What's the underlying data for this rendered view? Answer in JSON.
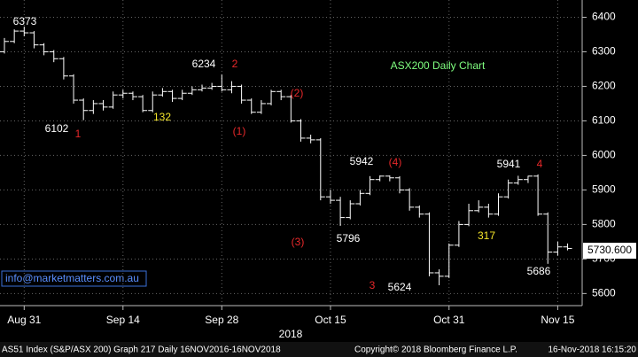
{
  "chart_data": {
    "type": "ohlc",
    "title": "ASX200 Daily Chart",
    "title_color": "#80ff80",
    "color": "#ffffff",
    "categories": [
      null,
      null,
      "Aug 31",
      null,
      null,
      null,
      null,
      null,
      null,
      null,
      null,
      null,
      "Sep 14",
      null,
      null,
      null,
      null,
      null,
      null,
      null,
      null,
      null,
      "Sep 28",
      null,
      null,
      null,
      null,
      null,
      null,
      null,
      null,
      null,
      null,
      "Oct 15",
      null,
      null,
      null,
      null,
      null,
      null,
      null,
      null,
      null,
      null,
      null,
      "Oct 31",
      null,
      null,
      null,
      null,
      null,
      null,
      null,
      null,
      null,
      null,
      "Nov 15",
      null
    ],
    "open": [
      6300,
      6330,
      6360,
      6355,
      6320,
      6300,
      6280,
      6230,
      6160,
      6130,
      6150,
      6140,
      6175,
      6180,
      6170,
      6130,
      6175,
      6185,
      6165,
      6180,
      6190,
      6195,
      6200,
      6190,
      6200,
      6160,
      6125,
      6150,
      6185,
      6170,
      6100,
      6050,
      6045,
      5880,
      5870,
      5820,
      5860,
      5890,
      5930,
      5940,
      5935,
      5900,
      5850,
      5830,
      5660,
      5650,
      5740,
      5800,
      5840,
      5850,
      5830,
      5880,
      5920,
      5930,
      5940,
      5830,
      5720,
      5735
    ],
    "high": [
      6340,
      6365,
      6373,
      6360,
      6325,
      6305,
      6285,
      6235,
      6165,
      6160,
      6160,
      6185,
      6190,
      6185,
      6175,
      6185,
      6195,
      6190,
      6190,
      6200,
      6205,
      6210,
      6234,
      6215,
      6205,
      6165,
      6160,
      6190,
      6190,
      6175,
      6105,
      6060,
      6050,
      5900,
      5880,
      5870,
      5900,
      5940,
      5942,
      5942,
      5940,
      5905,
      5855,
      5835,
      5670,
      5745,
      5810,
      5860,
      5870,
      5860,
      5890,
      5930,
      5941,
      5941,
      5945,
      5835,
      5750,
      5745
    ],
    "low": [
      6295,
      6325,
      6345,
      6310,
      6290,
      6270,
      6220,
      6150,
      6102,
      6120,
      6130,
      6135,
      6165,
      6160,
      6125,
      6125,
      6170,
      6155,
      6160,
      6175,
      6185,
      6190,
      6185,
      6180,
      6150,
      6120,
      6120,
      6145,
      6160,
      6095,
      6040,
      6035,
      5870,
      5860,
      5796,
      5815,
      5855,
      5885,
      5925,
      5925,
      5890,
      5840,
      5820,
      5650,
      5624,
      5645,
      5735,
      5795,
      5835,
      5820,
      5825,
      5875,
      5915,
      5920,
      5825,
      5686,
      5710,
      5725
    ],
    "close": [
      6330,
      6360,
      6355,
      6320,
      6300,
      6280,
      6230,
      6160,
      6130,
      6150,
      6140,
      6175,
      6180,
      6170,
      6130,
      6175,
      6185,
      6165,
      6180,
      6190,
      6195,
      6200,
      6190,
      6200,
      6160,
      6125,
      6150,
      6185,
      6170,
      6100,
      6050,
      6045,
      5880,
      5870,
      5820,
      5860,
      5890,
      5930,
      5940,
      5935,
      5900,
      5850,
      5830,
      5660,
      5650,
      5740,
      5800,
      5840,
      5850,
      5830,
      5880,
      5920,
      5930,
      5940,
      5830,
      5720,
      5735,
      5730.6
    ],
    "ylim": [
      5565,
      6450
    ],
    "yticks": [
      5600,
      5700,
      5800,
      5900,
      6000,
      6100,
      6200,
      6300,
      6400
    ],
    "grid": true,
    "last_price_label": "5730.600",
    "x_year": "2018",
    "annotations": [
      {
        "text": "6373",
        "color": "#ffffff"
      },
      {
        "text": "6102",
        "color": "#ffffff"
      },
      {
        "text": "1",
        "color": "#e8282a"
      },
      {
        "text": "132",
        "color": "#f5e62a"
      },
      {
        "text": "6234",
        "color": "#ffffff"
      },
      {
        "text": "2",
        "color": "#e8282a"
      },
      {
        "text": "(1)",
        "color": "#e8282a"
      },
      {
        "text": "(2)",
        "color": "#e8282a"
      },
      {
        "text": "5796",
        "color": "#ffffff"
      },
      {
        "text": "(3)",
        "color": "#e8282a"
      },
      {
        "text": "5942",
        "color": "#ffffff"
      },
      {
        "text": "(4)",
        "color": "#e8282a"
      },
      {
        "text": "3",
        "color": "#e8282a"
      },
      {
        "text": "5624",
        "color": "#ffffff"
      },
      {
        "text": "317",
        "color": "#f5e62a"
      },
      {
        "text": "5941",
        "color": "#ffffff"
      },
      {
        "text": "4",
        "color": "#e8282a"
      },
      {
        "text": "5686",
        "color": "#ffffff"
      }
    ],
    "email": "info@marketmatters.com.au",
    "footer_left": "AS51 Index (S&P/ASX 200) Graph 217  Daily 16NOV2016-16NOV2018",
    "footer_copyright": "Copyright© 2018 Bloomberg Finance L.P.",
    "footer_time": "16-Nov-2018 16:15:20"
  }
}
